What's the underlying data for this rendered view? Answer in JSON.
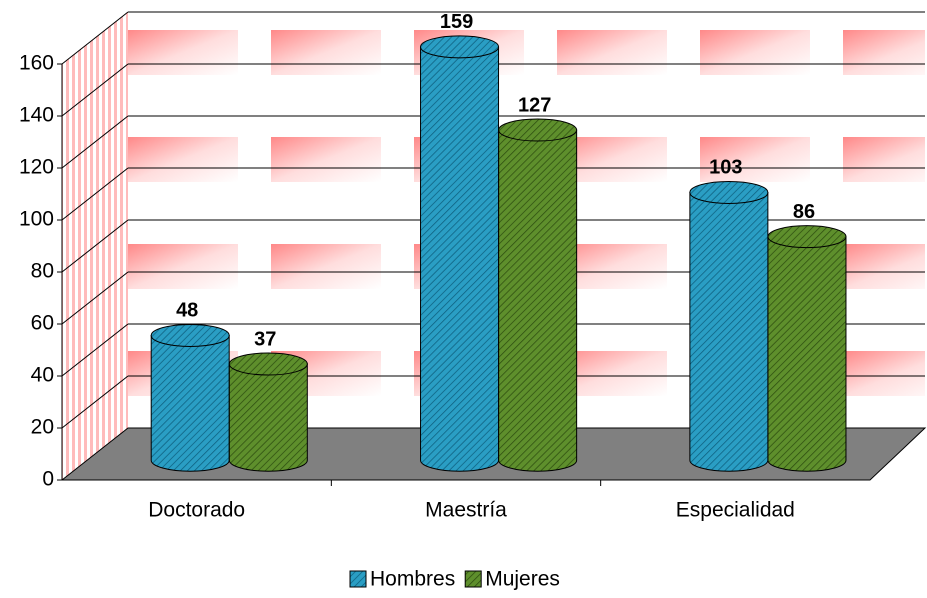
{
  "chart_data": {
    "type": "bar",
    "categories": [
      "Doctorado",
      "Maestría",
      "Especialidad"
    ],
    "series": [
      {
        "name": "Hombres",
        "color": "#2a9ec4",
        "values": [
          48,
          159,
          103
        ]
      },
      {
        "name": "Mujeres",
        "color": "#5e8f2c",
        "values": [
          37,
          127,
          86
        ]
      }
    ],
    "ylim": [
      0,
      160
    ],
    "yticks": [
      0,
      20,
      40,
      60,
      80,
      100,
      120,
      140,
      160
    ],
    "grid": true,
    "legend": "bottom"
  }
}
